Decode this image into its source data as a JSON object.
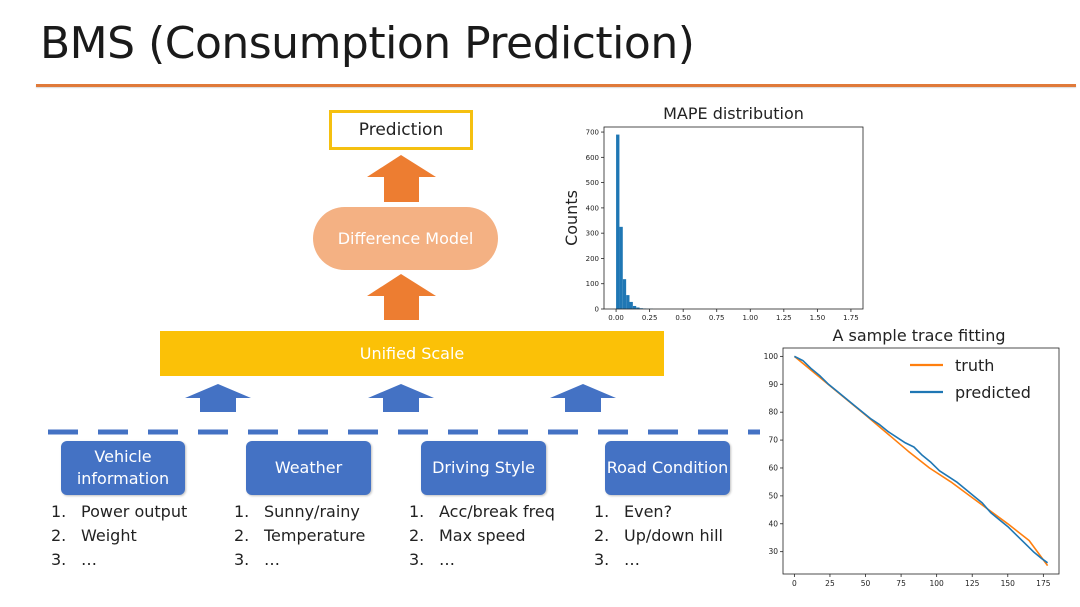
{
  "slide": {
    "title": "BMS (Consumption Prediction)"
  },
  "diagram": {
    "prediction_label": "Prediction",
    "difference_model_label": "Difference Model",
    "unified_scale_label": "Unified Scale",
    "colors": {
      "accent_rule": "#e07a3a",
      "arrow_orange": "#ed7d31",
      "arrow_blue": "#4472c4",
      "unified_fill": "#fbc107",
      "model_fill": "#f4b183",
      "prediction_border": "#f5c010"
    },
    "categories": [
      {
        "label": "Vehicle information",
        "items": [
          {
            "n": "1.",
            "t": "Power output"
          },
          {
            "n": "2.",
            "t": "Weight"
          },
          {
            "n": "3.",
            "t": "…"
          }
        ]
      },
      {
        "label": "Weather",
        "items": [
          {
            "n": "1.",
            "t": "Sunny/rainy"
          },
          {
            "n": "2.",
            "t": "Temperature"
          },
          {
            "n": "3.",
            "t": "…"
          }
        ]
      },
      {
        "label": "Driving Style",
        "items": [
          {
            "n": "1.",
            "t": "Acc/break freq"
          },
          {
            "n": "2.",
            "t": "Max speed"
          },
          {
            "n": "3.",
            "t": "…"
          }
        ]
      },
      {
        "label": "Road Condition",
        "items": [
          {
            "n": "1.",
            "t": "Even?"
          },
          {
            "n": "2.",
            "t": "Up/down hill"
          },
          {
            "n": "3.",
            "t": "…"
          }
        ]
      }
    ]
  },
  "chart_data": [
    {
      "type": "bar",
      "title": "MAPE distribution",
      "xlabel": "",
      "ylabel": "Counts",
      "bin_width": 0.025,
      "bin_starts": [
        0.0,
        0.025,
        0.05,
        0.075,
        0.1,
        0.125,
        0.15,
        0.175,
        0.2,
        0.225,
        0.25
      ],
      "values": [
        690,
        325,
        118,
        55,
        28,
        12,
        6,
        3,
        2,
        1,
        1
      ],
      "xlim": [
        -0.09,
        1.84
      ],
      "ylim": [
        0,
        720
      ],
      "xticks": [
        0.0,
        0.25,
        0.5,
        0.75,
        1.0,
        1.25,
        1.5,
        1.75
      ],
      "xtick_labels": [
        "0.00",
        "0.25",
        "0.50",
        "0.75",
        "1.00",
        "1.25",
        "1.50",
        "1.75"
      ],
      "yticks": [
        0,
        100,
        200,
        300,
        400,
        500,
        600,
        700
      ],
      "grid": false,
      "color": "#1f77b4"
    },
    {
      "type": "line",
      "title": "A sample trace fitting",
      "xlabel": "",
      "ylabel": "",
      "xlim": [
        -8,
        186
      ],
      "ylim": [
        22,
        103
      ],
      "xticks": [
        0,
        25,
        50,
        75,
        100,
        125,
        150,
        175
      ],
      "yticks": [
        30,
        40,
        50,
        60,
        70,
        80,
        90,
        100
      ],
      "legend_position": "top-right",
      "grid": false,
      "series": [
        {
          "name": "truth",
          "color": "#ff7f0e",
          "x": [
            0,
            25,
            50,
            65,
            80,
            95,
            110,
            130,
            150,
            165,
            178
          ],
          "y": [
            100,
            89.5,
            79,
            72.5,
            66,
            60,
            55,
            47.5,
            40,
            34,
            25
          ]
        },
        {
          "name": "predicted",
          "color": "#1f77b4",
          "x": [
            0,
            6,
            12,
            18,
            24,
            30,
            36,
            42,
            48,
            54,
            60,
            66,
            72,
            78,
            84,
            90,
            96,
            102,
            108,
            114,
            120,
            126,
            132,
            138,
            144,
            150,
            156,
            162,
            168,
            174,
            178
          ],
          "y": [
            100,
            98.5,
            95.5,
            93,
            90,
            87.5,
            85,
            82.5,
            80,
            77.5,
            75.5,
            73,
            71,
            69,
            67.5,
            64.5,
            62,
            59,
            57,
            55,
            52.5,
            50,
            47.5,
            44,
            41.5,
            39,
            36,
            33,
            30,
            27.5,
            26
          ]
        }
      ]
    }
  ]
}
